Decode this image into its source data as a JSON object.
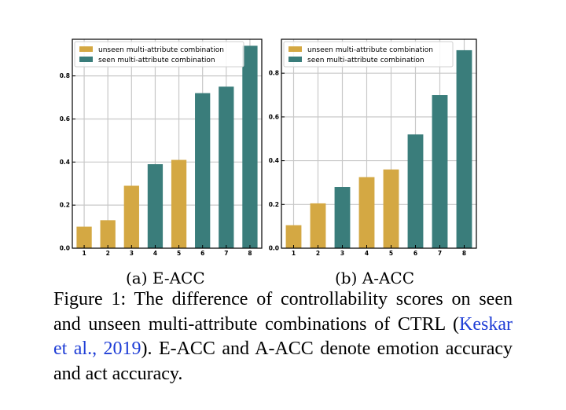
{
  "chart_data": [
    {
      "type": "bar",
      "subcaption": "(a) E-ACC",
      "categories": [
        "1",
        "2",
        "3",
        "4",
        "5",
        "6",
        "7",
        "8"
      ],
      "values": [
        0.1,
        0.13,
        0.29,
        0.39,
        0.41,
        0.72,
        0.75,
        0.94
      ],
      "groups": [
        "unseen",
        "unseen",
        "unseen",
        "seen",
        "unseen",
        "seen",
        "seen",
        "seen"
      ],
      "legend": [
        {
          "key": "unseen",
          "label": "unseen multi-attribute combination",
          "color": "#d4a843"
        },
        {
          "key": "seen",
          "label": "seen multi-attribute combination",
          "color": "#3a7d7b"
        }
      ],
      "yticks": [
        "0.0",
        "0.2",
        "0.4",
        "0.6",
        "0.8"
      ],
      "ylim": [
        0,
        0.97
      ],
      "grid": true,
      "legend_position": "top-left"
    },
    {
      "type": "bar",
      "subcaption": "(b) A-ACC",
      "categories": [
        "1",
        "2",
        "3",
        "4",
        "5",
        "6",
        "7",
        "8"
      ],
      "values": [
        0.105,
        0.205,
        0.28,
        0.325,
        0.36,
        0.52,
        0.7,
        0.905
      ],
      "groups": [
        "unseen",
        "unseen",
        "seen",
        "unseen",
        "unseen",
        "seen",
        "seen",
        "seen"
      ],
      "legend": [
        {
          "key": "unseen",
          "label": "unseen multi-attribute combination",
          "color": "#d4a843"
        },
        {
          "key": "seen",
          "label": "seen multi-attribute combination",
          "color": "#3a7d7b"
        }
      ],
      "yticks": [
        "0.0",
        "0.2",
        "0.4",
        "0.6",
        "0.8"
      ],
      "ylim": [
        0,
        0.955
      ],
      "grid": true,
      "legend_position": "top-left"
    }
  ],
  "caption": {
    "prefix": "Figure 1: The difference of controllability scores on seen and unseen multi-attribute combinations of CTRL (",
    "citation": "Keskar et al., 2019",
    "suffix": "). E-ACC and A-ACC denote emotion accuracy and act accuracy."
  }
}
